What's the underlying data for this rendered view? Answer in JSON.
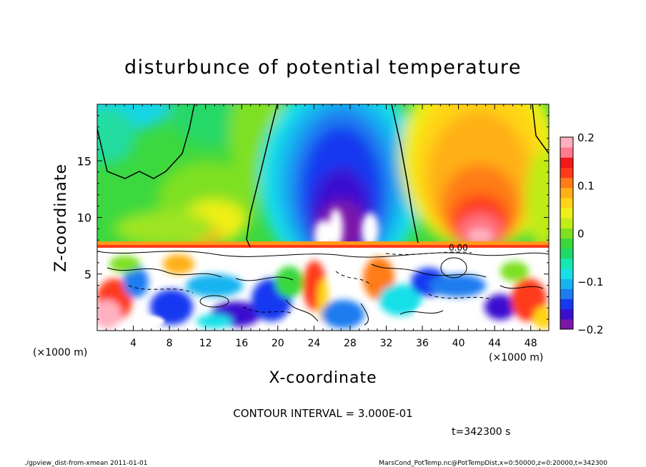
{
  "chart_data": {
    "type": "heatmap",
    "title": "disturbunce of potential temperature",
    "xlabel": "X-coordinate",
    "ylabel": "Z-coordinate",
    "x_unit": "(×1000 m)",
    "x_unit_right": "(×1000 m)",
    "xlim": [
      0,
      50
    ],
    "ylim": [
      0,
      20
    ],
    "x_ticks": [
      4,
      8,
      12,
      16,
      20,
      24,
      28,
      32,
      36,
      40,
      44,
      48
    ],
    "y_ticks": [
      5,
      10,
      15
    ],
    "colorbar": {
      "range": [
        -0.2,
        0.2
      ],
      "tick_values": [
        0.2,
        0.1,
        0,
        -0.1,
        -0.2
      ],
      "tick_labels": [
        "0.2",
        "0.1",
        "0",
        "−0.1",
        "−0.2"
      ]
    },
    "contour_label": "0.00",
    "contour_interval_text": "CONTOUR INTERVAL = 3.000E-01",
    "time_text": "t=342300 s",
    "footer_left": "./gpview_dist-from-xmean  2011-01-01",
    "footer_right": "MarsCond_PotTemp.nc@PotTempDist,x=0:50000,z=0:20000,t=342300"
  },
  "colors": {
    "scale": [
      "#7b16a8",
      "#3a0fd0",
      "#1538f0",
      "#1c7cf0",
      "#18b4f0",
      "#18e0e8",
      "#16e8b0",
      "#1ed86a",
      "#38d83a",
      "#7ee020",
      "#c0ec18",
      "#eef018",
      "#ffd418",
      "#ffb018",
      "#ff7c18",
      "#ff3a1a",
      "#f01818",
      "#ff7a8c",
      "#ffb0c0"
    ]
  }
}
